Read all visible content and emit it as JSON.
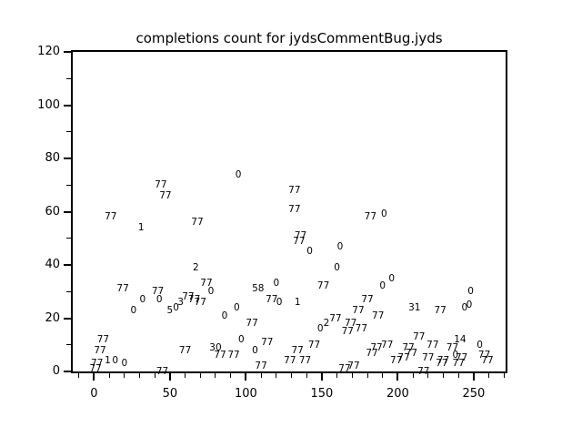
{
  "title": "completions count for jydsCommentBug.jyds",
  "colors": {
    "foreground": "#000000",
    "background": "#ffffff"
  },
  "chart_data": {
    "type": "scatter",
    "title": "completions count for jydsCommentBug.jyds",
    "xlabel": "",
    "ylabel": "",
    "xlim": [
      -14,
      271
    ],
    "ylim": [
      0,
      120
    ],
    "x_major_ticks": [
      0,
      50,
      100,
      150,
      200,
      250
    ],
    "x_minor_step": 10,
    "y_major_ticks": [
      0,
      20,
      40,
      60,
      80,
      100,
      120
    ],
    "y_minor_step": 10,
    "grid": false,
    "legend": null,
    "marker_style": "text-label",
    "points_format": [
      "x",
      "y",
      "label"
    ],
    "points": [
      [
        44,
        70,
        "77"
      ],
      [
        47,
        66,
        "77"
      ],
      [
        95,
        74,
        "0"
      ],
      [
        11,
        58,
        "77"
      ],
      [
        31,
        54,
        "1"
      ],
      [
        68,
        56,
        "77"
      ],
      [
        132,
        68,
        "77"
      ],
      [
        132,
        61,
        "77"
      ],
      [
        182,
        58,
        "77"
      ],
      [
        191,
        59,
        "0"
      ],
      [
        67,
        39,
        "2"
      ],
      [
        135,
        49,
        "77"
      ],
      [
        136,
        51,
        "77"
      ],
      [
        142,
        45,
        "0"
      ],
      [
        162,
        47,
        "0"
      ],
      [
        160,
        39,
        "0"
      ],
      [
        19,
        31,
        "77"
      ],
      [
        32,
        27,
        "0"
      ],
      [
        42,
        30,
        "77"
      ],
      [
        43,
        27,
        "0"
      ],
      [
        26,
        23,
        "0"
      ],
      [
        57,
        26,
        "3"
      ],
      [
        54,
        24,
        "0"
      ],
      [
        50,
        23,
        "5"
      ],
      [
        62,
        28,
        "77"
      ],
      [
        66,
        27,
        "77"
      ],
      [
        70,
        26,
        "77"
      ],
      [
        74,
        33,
        "77"
      ],
      [
        77,
        30,
        "0"
      ],
      [
        86,
        21,
        "0"
      ],
      [
        94,
        24,
        "0"
      ],
      [
        108,
        31,
        "58"
      ],
      [
        120,
        33,
        "0"
      ],
      [
        117,
        27,
        "77"
      ],
      [
        122,
        26,
        "0"
      ],
      [
        134,
        26,
        "1"
      ],
      [
        151,
        32,
        "77"
      ],
      [
        104,
        18,
        "77"
      ],
      [
        97,
        12,
        "0"
      ],
      [
        114,
        11,
        "77"
      ],
      [
        106,
        8,
        "0"
      ],
      [
        83,
        6,
        "77"
      ],
      [
        92,
        6,
        "77"
      ],
      [
        80,
        9,
        "30"
      ],
      [
        60,
        8,
        "77"
      ],
      [
        45,
        0,
        "77"
      ],
      [
        4,
        8,
        "77"
      ],
      [
        6,
        12,
        "77"
      ],
      [
        9,
        4,
        "1"
      ],
      [
        14,
        4,
        "0"
      ],
      [
        20,
        3,
        "0"
      ],
      [
        2,
        3,
        "77"
      ],
      [
        1,
        1,
        "77"
      ],
      [
        134,
        8,
        "77"
      ],
      [
        145,
        10,
        "77"
      ],
      [
        129,
        4,
        "77"
      ],
      [
        139,
        4,
        "77"
      ],
      [
        110,
        2,
        "77"
      ],
      [
        171,
        2,
        "77"
      ],
      [
        165,
        1,
        "77"
      ],
      [
        153,
        18,
        "2"
      ],
      [
        149,
        16,
        "0"
      ],
      [
        159,
        20,
        "77"
      ],
      [
        169,
        18,
        "77"
      ],
      [
        167,
        15,
        "77"
      ],
      [
        176,
        16,
        "77"
      ],
      [
        174,
        23,
        "77"
      ],
      [
        180,
        27,
        "77"
      ],
      [
        196,
        35,
        "0"
      ],
      [
        190,
        32,
        "0"
      ],
      [
        187,
        21,
        "77"
      ],
      [
        211,
        24,
        "31"
      ],
      [
        228,
        23,
        "77"
      ],
      [
        244,
        24,
        "0"
      ],
      [
        247,
        25,
        "0"
      ],
      [
        248,
        30,
        "0"
      ],
      [
        214,
        13,
        "77"
      ],
      [
        241,
        12,
        "14"
      ],
      [
        186,
        9,
        "77"
      ],
      [
        193,
        10,
        "77"
      ],
      [
        183,
        7,
        "77"
      ],
      [
        207,
        9,
        "77"
      ],
      [
        209,
        7,
        "77"
      ],
      [
        223,
        10,
        "77"
      ],
      [
        236,
        9,
        "77"
      ],
      [
        238,
        6,
        "0"
      ],
      [
        242,
        5,
        "77"
      ],
      [
        254,
        10,
        "0"
      ],
      [
        257,
        6,
        "77"
      ],
      [
        259,
        4,
        "77"
      ],
      [
        199,
        4,
        "77"
      ],
      [
        204,
        5,
        "77"
      ],
      [
        220,
        5,
        "77"
      ],
      [
        230,
        4,
        "77"
      ],
      [
        229,
        3,
        "77"
      ],
      [
        240,
        3,
        "77"
      ],
      [
        217,
        0,
        "77"
      ]
    ]
  }
}
